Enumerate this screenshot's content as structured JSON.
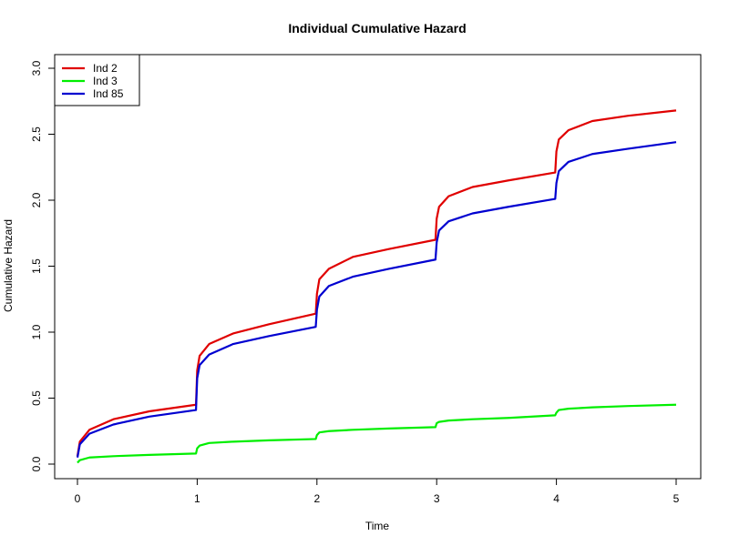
{
  "chart_data": {
    "type": "line",
    "title": "Individual Cumulative Hazard",
    "xlabel": "Time",
    "ylabel": "Cumulative Hazard",
    "xlim": [
      0,
      5
    ],
    "ylim": [
      0,
      3
    ],
    "x_ticks": [
      "0",
      "1",
      "2",
      "3",
      "4",
      "5"
    ],
    "y_ticks": [
      "0.0",
      "0.5",
      "1.0",
      "1.5",
      "2.0",
      "2.5",
      "3.0"
    ],
    "grid": false,
    "legend_position": "top-left",
    "step_points": [
      0,
      1,
      2,
      3,
      4
    ],
    "series": [
      {
        "name": "Ind 2",
        "color": "#e00000",
        "x": [
          0.0,
          0.02,
          0.1,
          0.3,
          0.6,
          0.99,
          1.0,
          1.02,
          1.1,
          1.3,
          1.6,
          1.99,
          2.0,
          2.02,
          2.1,
          2.3,
          2.6,
          2.99,
          3.0,
          3.02,
          3.1,
          3.3,
          3.6,
          3.99,
          4.0,
          4.02,
          4.1,
          4.3,
          4.6,
          5.0
        ],
        "y": [
          0.06,
          0.17,
          0.26,
          0.34,
          0.4,
          0.45,
          0.71,
          0.82,
          0.91,
          0.99,
          1.06,
          1.14,
          1.29,
          1.4,
          1.48,
          1.57,
          1.63,
          1.7,
          1.86,
          1.95,
          2.03,
          2.1,
          2.15,
          2.21,
          2.37,
          2.46,
          2.53,
          2.6,
          2.64,
          2.68
        ]
      },
      {
        "name": "Ind 3",
        "color": "#00ee00",
        "x": [
          0.0,
          0.02,
          0.1,
          0.3,
          0.6,
          0.99,
          1.0,
          1.02,
          1.1,
          1.3,
          1.6,
          1.99,
          2.0,
          2.02,
          2.1,
          2.3,
          2.6,
          2.99,
          3.0,
          3.02,
          3.1,
          3.3,
          3.6,
          3.99,
          4.0,
          4.02,
          4.1,
          4.3,
          4.6,
          5.0
        ],
        "y": [
          0.01,
          0.03,
          0.05,
          0.06,
          0.07,
          0.08,
          0.12,
          0.14,
          0.16,
          0.17,
          0.18,
          0.19,
          0.22,
          0.24,
          0.25,
          0.26,
          0.27,
          0.28,
          0.31,
          0.32,
          0.33,
          0.34,
          0.35,
          0.37,
          0.39,
          0.41,
          0.42,
          0.43,
          0.44,
          0.45
        ]
      },
      {
        "name": "Ind 85",
        "color": "#0000d0",
        "x": [
          0.0,
          0.02,
          0.1,
          0.3,
          0.6,
          0.99,
          1.0,
          1.02,
          1.1,
          1.3,
          1.6,
          1.99,
          2.0,
          2.02,
          2.1,
          2.3,
          2.6,
          2.99,
          3.0,
          3.02,
          3.1,
          3.3,
          3.6,
          3.99,
          4.0,
          4.02,
          4.1,
          4.3,
          4.6,
          5.0
        ],
        "y": [
          0.05,
          0.15,
          0.23,
          0.3,
          0.36,
          0.41,
          0.65,
          0.75,
          0.83,
          0.91,
          0.97,
          1.04,
          1.17,
          1.27,
          1.35,
          1.42,
          1.48,
          1.55,
          1.68,
          1.77,
          1.84,
          1.9,
          1.95,
          2.01,
          2.13,
          2.22,
          2.29,
          2.35,
          2.39,
          2.44
        ]
      }
    ]
  }
}
